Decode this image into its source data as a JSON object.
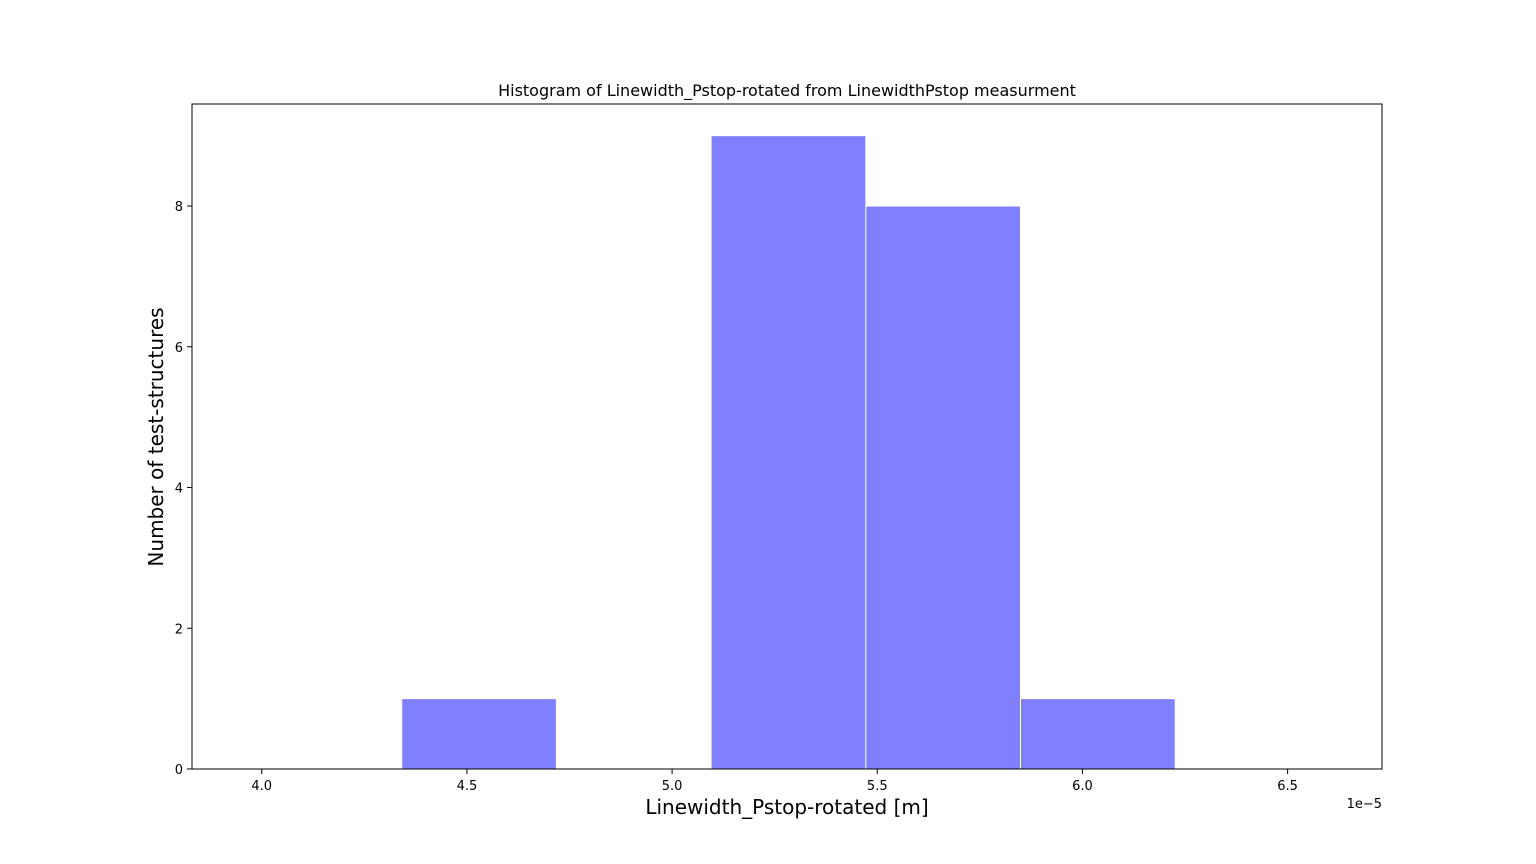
{
  "chart_data": {
    "type": "bar",
    "title": "Histogram of Linewidth_Pstop-rotated from LinewidthPstop measurment",
    "xlabel": "Linewidth_Pstop-rotated [m]",
    "ylabel": "Number of test-structures",
    "x_offset_label": "1e−5",
    "bin_edges": [
      4.341e-05,
      4.718e-05,
      5.095e-05,
      5.472e-05,
      5.849e-05,
      6.226e-05
    ],
    "bins": [
      {
        "x0": 4.341e-05,
        "x1": 4.718e-05,
        "count": 1
      },
      {
        "x0": 4.718e-05,
        "x1": 5.095e-05,
        "count": 0
      },
      {
        "x0": 5.095e-05,
        "x1": 5.472e-05,
        "count": 9
      },
      {
        "x0": 5.472e-05,
        "x1": 5.849e-05,
        "count": 8
      },
      {
        "x0": 5.849e-05,
        "x1": 6.226e-05,
        "count": 1
      }
    ],
    "xlim": [
      3.83e-05,
      6.73e-05
    ],
    "ylim": [
      0,
      9.45
    ],
    "xticks": [
      {
        "value": 4e-05,
        "label": "4.0"
      },
      {
        "value": 4.5e-05,
        "label": "4.5"
      },
      {
        "value": 5e-05,
        "label": "5.0"
      },
      {
        "value": 5.5e-05,
        "label": "5.5"
      },
      {
        "value": 6e-05,
        "label": "6.0"
      },
      {
        "value": 6.5e-05,
        "label": "6.5"
      }
    ],
    "yticks": [
      {
        "value": 0,
        "label": "0"
      },
      {
        "value": 2,
        "label": "2"
      },
      {
        "value": 4,
        "label": "4"
      },
      {
        "value": 6,
        "label": "6"
      },
      {
        "value": 8,
        "label": "8"
      }
    ],
    "bar_color": "#8080ff",
    "edge_color": "#ffffff",
    "grid": false,
    "legend": "none"
  }
}
